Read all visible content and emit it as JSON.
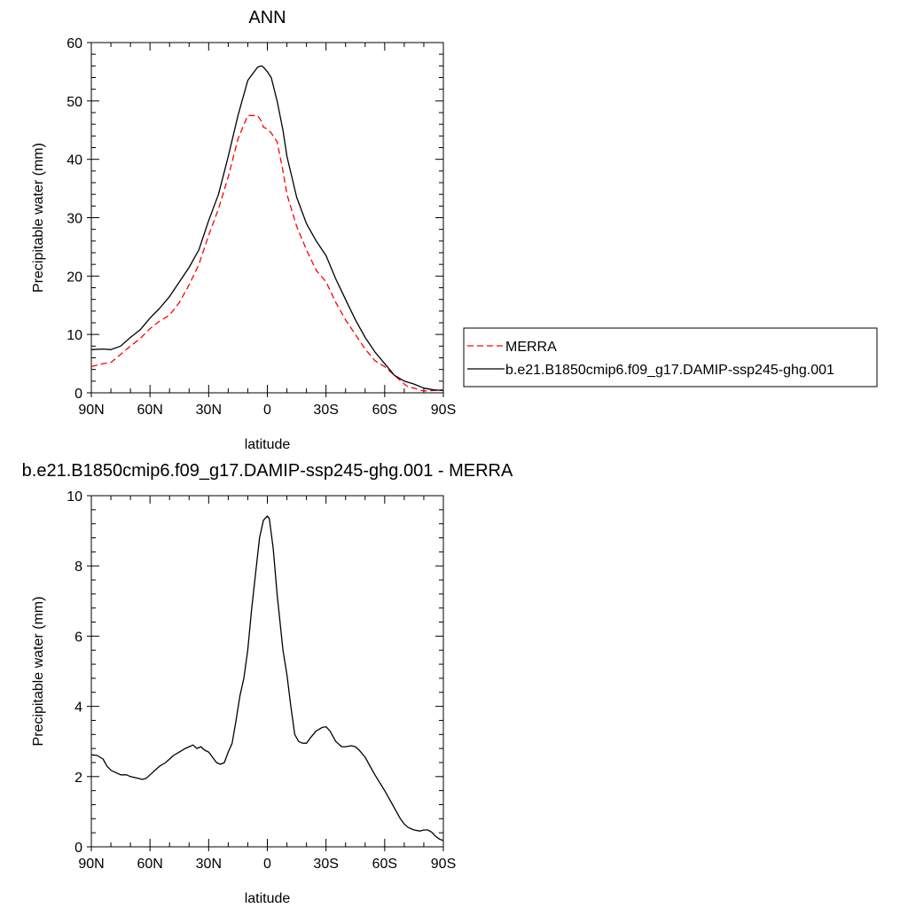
{
  "chart_data": [
    {
      "type": "line",
      "title": "ANN",
      "xlabel": "latitude",
      "ylabel": "Precipitable water (mm)",
      "xlim": [
        90,
        -90
      ],
      "ylim": [
        0,
        60
      ],
      "yticks": [
        0,
        10,
        20,
        30,
        40,
        50,
        60
      ],
      "xticks": [
        {
          "value": 90,
          "label": "90N"
        },
        {
          "value": 60,
          "label": "60N"
        },
        {
          "value": 30,
          "label": "30N"
        },
        {
          "value": 0,
          "label": "0"
        },
        {
          "value": -30,
          "label": "30S"
        },
        {
          "value": -60,
          "label": "60S"
        },
        {
          "value": -90,
          "label": "90S"
        }
      ],
      "grid": false,
      "legend_position": "right",
      "series": [
        {
          "name": "MERRA",
          "color": "#ff0000",
          "dash": true,
          "x": [
            90,
            84,
            80,
            75,
            70,
            65,
            60,
            55,
            50,
            45,
            40,
            35,
            30,
            25,
            20,
            15,
            10,
            5,
            3,
            2,
            0,
            -2,
            -5,
            -8,
            -10,
            -15,
            -20,
            -25,
            -30,
            -35,
            -40,
            -45,
            -50,
            -55,
            -60,
            -65,
            -70,
            -72,
            -75,
            -80,
            -85,
            -90
          ],
          "y": [
            4.5,
            5.0,
            5.2,
            6.6,
            8.0,
            9.3,
            11.0,
            12.3,
            13.3,
            15.5,
            18.5,
            22.0,
            27.0,
            31.5,
            37.0,
            43.5,
            47.5,
            47.5,
            46.5,
            45.5,
            45.2,
            44.5,
            43.0,
            38.0,
            34.0,
            28.5,
            24.5,
            21.0,
            19.0,
            15.5,
            12.5,
            10.0,
            7.5,
            5.5,
            4.5,
            3.0,
            1.5,
            1.0,
            0.8,
            0.3,
            0.4,
            0.5
          ]
        },
        {
          "name": "b.e21.B1850cmip6.f09_g17.DAMIP-ssp245-ghg.001",
          "color": "#000000",
          "dash": false,
          "x": [
            90,
            84,
            80,
            75,
            70,
            65,
            60,
            55,
            50,
            45,
            40,
            35,
            30,
            25,
            20,
            15,
            10,
            5,
            3,
            2,
            0,
            -2,
            -5,
            -8,
            -10,
            -15,
            -20,
            -25,
            -30,
            -35,
            -40,
            -45,
            -50,
            -55,
            -60,
            -65,
            -70,
            -72,
            -75,
            -80,
            -85,
            -90
          ],
          "y": [
            7.4,
            7.5,
            7.4,
            8.0,
            9.5,
            10.8,
            12.8,
            14.5,
            16.5,
            19.0,
            21.5,
            24.5,
            29.5,
            34.0,
            40.5,
            47.5,
            53.5,
            55.8,
            56.0,
            55.8,
            55.0,
            54.0,
            50.0,
            45.0,
            40.5,
            33.5,
            29.0,
            26.0,
            23.5,
            19.5,
            16.0,
            12.5,
            9.5,
            7.0,
            5.0,
            3.0,
            2.0,
            1.8,
            1.5,
            0.8,
            0.5,
            0.4
          ]
        }
      ]
    },
    {
      "type": "line",
      "title": "b.e21.B1850cmip6.f09_g17.DAMIP-ssp245-ghg.001 - MERRA",
      "xlabel": "latitude",
      "ylabel": "Precipitable water (mm)",
      "xlim": [
        90,
        -90
      ],
      "ylim": [
        0,
        10
      ],
      "yticks": [
        0,
        2,
        4,
        6,
        8,
        10
      ],
      "xticks": [
        {
          "value": 90,
          "label": "90N"
        },
        {
          "value": 60,
          "label": "60N"
        },
        {
          "value": 30,
          "label": "30N"
        },
        {
          "value": 0,
          "label": "0"
        },
        {
          "value": -30,
          "label": "30S"
        },
        {
          "value": -60,
          "label": "60S"
        },
        {
          "value": -90,
          "label": "90S"
        }
      ],
      "grid": false,
      "series": [
        {
          "color": "#000000",
          "dash": false,
          "x": [
            90,
            87,
            84,
            82,
            80,
            77,
            75,
            72,
            70,
            66,
            64,
            62,
            60,
            55,
            52,
            50,
            48,
            45,
            42,
            40,
            38,
            36,
            34,
            32,
            30,
            28,
            26,
            24,
            22,
            20,
            18,
            16,
            14,
            12,
            10,
            8,
            6,
            4,
            2,
            0,
            -1,
            -3,
            -5,
            -8,
            -10,
            -12,
            -14,
            -16,
            -18,
            -20,
            -22,
            -25,
            -28,
            -30,
            -32,
            -35,
            -38,
            -40,
            -43,
            -45,
            -47,
            -50,
            -55,
            -60,
            -65,
            -68,
            -70,
            -72,
            -75,
            -78,
            -80,
            -82,
            -84,
            -86,
            -88,
            -90
          ],
          "y": [
            2.62,
            2.6,
            2.5,
            2.3,
            2.18,
            2.1,
            2.05,
            2.05,
            2.0,
            1.95,
            1.92,
            1.95,
            2.05,
            2.3,
            2.4,
            2.5,
            2.6,
            2.7,
            2.8,
            2.85,
            2.9,
            2.8,
            2.85,
            2.75,
            2.7,
            2.55,
            2.4,
            2.35,
            2.4,
            2.7,
            2.95,
            3.6,
            4.3,
            4.8,
            5.6,
            6.8,
            7.8,
            8.8,
            9.3,
            9.42,
            9.35,
            8.5,
            7.2,
            5.6,
            4.9,
            4.0,
            3.2,
            3.0,
            2.95,
            2.95,
            3.1,
            3.3,
            3.4,
            3.42,
            3.3,
            3.0,
            2.85,
            2.85,
            2.88,
            2.85,
            2.75,
            2.55,
            2.05,
            1.6,
            1.1,
            0.8,
            0.65,
            0.55,
            0.48,
            0.45,
            0.48,
            0.48,
            0.42,
            0.3,
            0.22,
            0.18
          ]
        }
      ]
    }
  ]
}
